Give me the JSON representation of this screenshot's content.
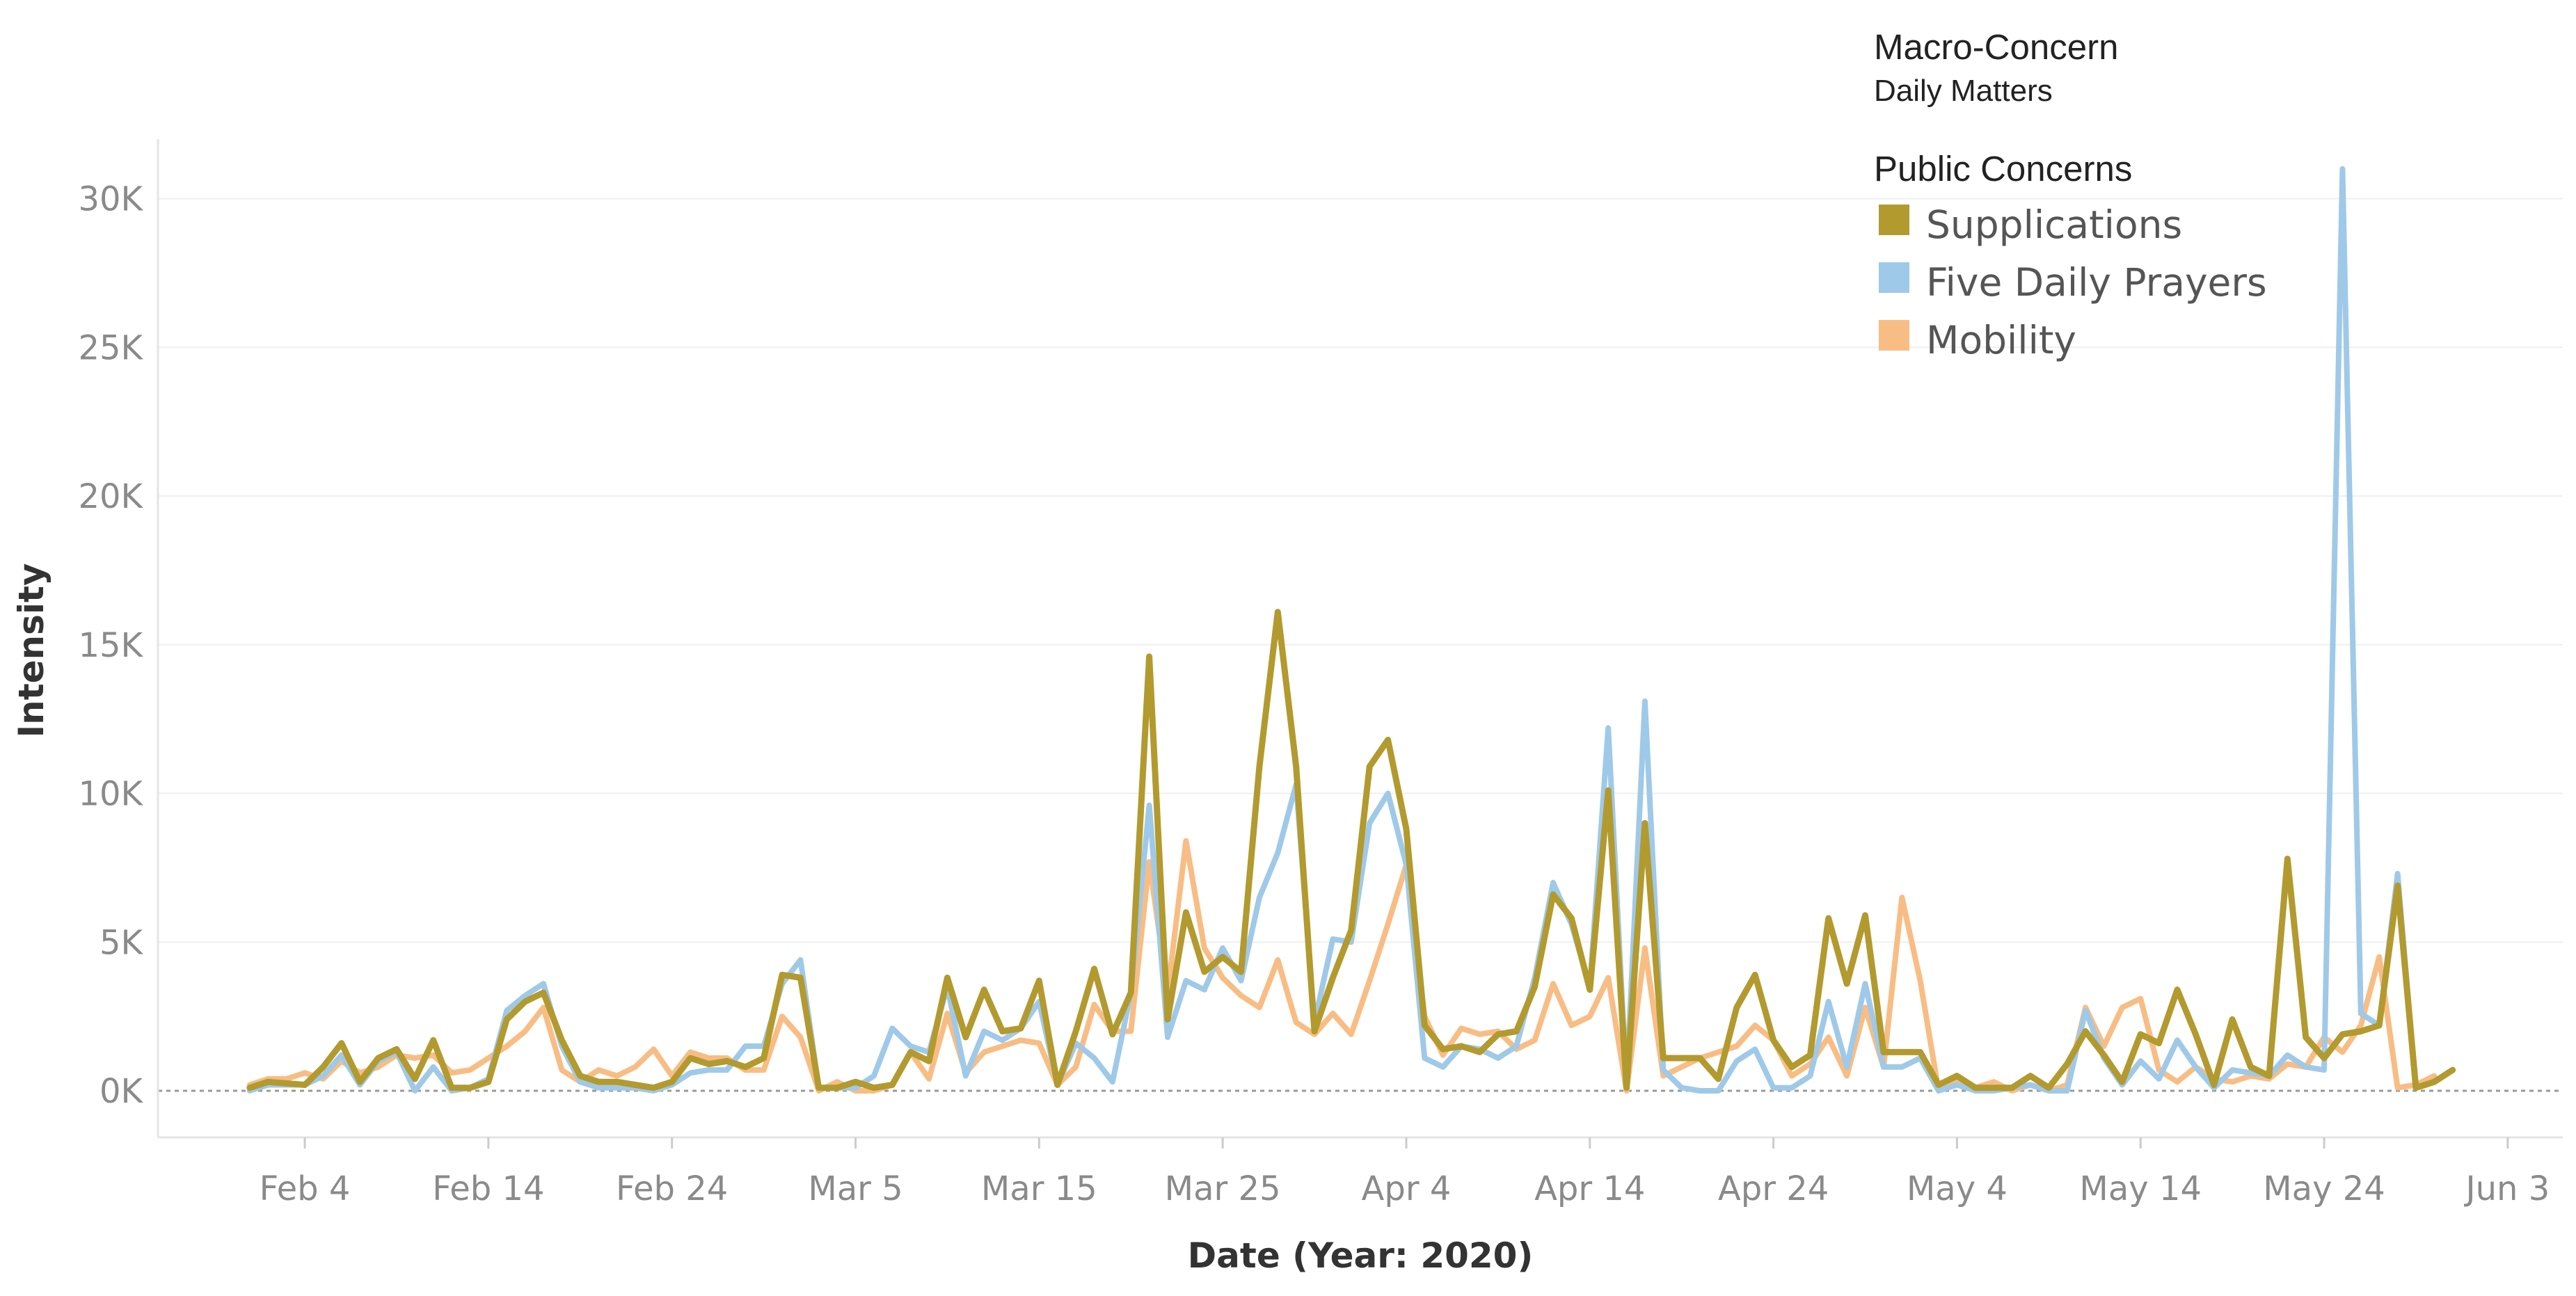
{
  "chart_data": {
    "type": "line",
    "xlabel": "Date (Year: 2020)",
    "ylabel": "Intensity",
    "x_ticks": [
      "Feb 4",
      "Feb 14",
      "Feb 24",
      "Mar 5",
      "Mar 15",
      "Mar 25",
      "Apr 4",
      "Apr 14",
      "Apr 24",
      "May 4",
      "May 14",
      "May 24",
      "Jun 3"
    ],
    "y_ticks": [
      "0K",
      "5K",
      "10K",
      "15K",
      "20K",
      "25K",
      "30K"
    ],
    "ylim": [
      0,
      32000
    ],
    "x_range": [
      "2020-01-27",
      "2020-06-06"
    ],
    "x_start": "2020-02-01",
    "x_step_days": 1,
    "grid": true,
    "legend_position": "top-right",
    "legend": {
      "context_title": "Macro-Concern",
      "context_value": "Daily Matters",
      "title": "Public Concerns"
    },
    "series": [
      {
        "name": "Supplications",
        "color": "#b29a2f",
        "values": [
          100,
          300,
          250,
          200,
          800,
          1600,
          300,
          1100,
          1400,
          400,
          1700,
          100,
          100,
          300,
          2400,
          3000,
          3300,
          1700,
          500,
          300,
          300,
          200,
          100,
          300,
          1100,
          900,
          1000,
          800,
          1100,
          3900,
          3800,
          100,
          100,
          300,
          100,
          200,
          1300,
          1000,
          3800,
          1800,
          3400,
          2000,
          2100,
          3700,
          200,
          2000,
          4100,
          1900,
          3300,
          14600,
          2400,
          6000,
          4000,
          4500,
          4000,
          10900,
          16100,
          10900,
          2000,
          3800,
          5400,
          10900,
          11800,
          8800,
          2200,
          1400,
          1500,
          1300,
          1900,
          2000,
          3500,
          6600,
          5800,
          3400,
          10100,
          100,
          9000,
          1100,
          1100,
          1100,
          400,
          2800,
          3900,
          1700,
          800,
          1200,
          5800,
          3600,
          5900,
          1300,
          1300,
          1300,
          200,
          500,
          100,
          100,
          100,
          500,
          100,
          900,
          2000,
          1200,
          300,
          1900,
          1600,
          3400,
          1900,
          200,
          2400,
          800,
          500,
          7800,
          1800,
          1100,
          1900,
          2000,
          2200,
          6900,
          100,
          300,
          700
        ]
      },
      {
        "name": "Five Daily Prayers",
        "color": "#9fc9e8",
        "values": [
          0,
          200,
          200,
          200,
          500,
          1200,
          200,
          1000,
          1300,
          0,
          800,
          0,
          100,
          400,
          2700,
          3200,
          3600,
          1500,
          300,
          100,
          100,
          100,
          0,
          200,
          600,
          700,
          700,
          1500,
          1500,
          3600,
          4400,
          100,
          100,
          100,
          500,
          2100,
          1500,
          1300,
          3500,
          500,
          2000,
          1700,
          2100,
          3000,
          200,
          1600,
          1100,
          300,
          3300,
          9600,
          1800,
          3700,
          3400,
          4800,
          3700,
          6500,
          8000,
          10300,
          2300,
          5100,
          5000,
          9000,
          10000,
          7600,
          1100,
          800,
          1500,
          1400,
          1100,
          1500,
          3800,
          7000,
          5600,
          3500,
          12200,
          200,
          13100,
          700,
          100,
          0,
          0,
          1000,
          1400,
          100,
          100,
          500,
          3000,
          800,
          3600,
          800,
          800,
          1100,
          0,
          200,
          0,
          0,
          100,
          200,
          0,
          0,
          2700,
          1100,
          200,
          1000,
          400,
          1700,
          800,
          100,
          700,
          600,
          500,
          1200,
          800,
          700,
          31000,
          2600,
          2200,
          7300,
          100,
          300,
          700
        ]
      },
      {
        "name": "Mobility",
        "color": "#f8bd84",
        "values": [
          200,
          400,
          400,
          600,
          400,
          1000,
          600,
          800,
          1200,
          1100,
          1200,
          600,
          700,
          1100,
          1500,
          2000,
          2800,
          700,
          300,
          700,
          500,
          800,
          1400,
          500,
          1300,
          1100,
          1100,
          700,
          700,
          2500,
          1800,
          0,
          300,
          0,
          0,
          200,
          1300,
          400,
          2600,
          600,
          1300,
          1500,
          1700,
          1600,
          200,
          800,
          2900,
          2000,
          2000,
          7700,
          3300,
          8400,
          4800,
          3800,
          3200,
          2800,
          4400,
          2300,
          1900,
          2600,
          1900,
          3700,
          5600,
          7600,
          2500,
          1200,
          2100,
          1900,
          2000,
          1400,
          1700,
          3600,
          2200,
          2500,
          3800,
          0,
          4800,
          500,
          800,
          1100,
          1300,
          1500,
          2200,
          1700,
          500,
          900,
          1800,
          500,
          2800,
          800,
          6500,
          3700,
          0,
          300,
          100,
          300,
          0,
          200,
          0,
          200,
          2800,
          1500,
          2800,
          3100,
          700,
          300,
          800,
          400,
          300,
          500,
          400,
          900,
          800,
          1800,
          1300,
          2200,
          4500,
          100,
          200,
          500
        ]
      }
    ]
  }
}
